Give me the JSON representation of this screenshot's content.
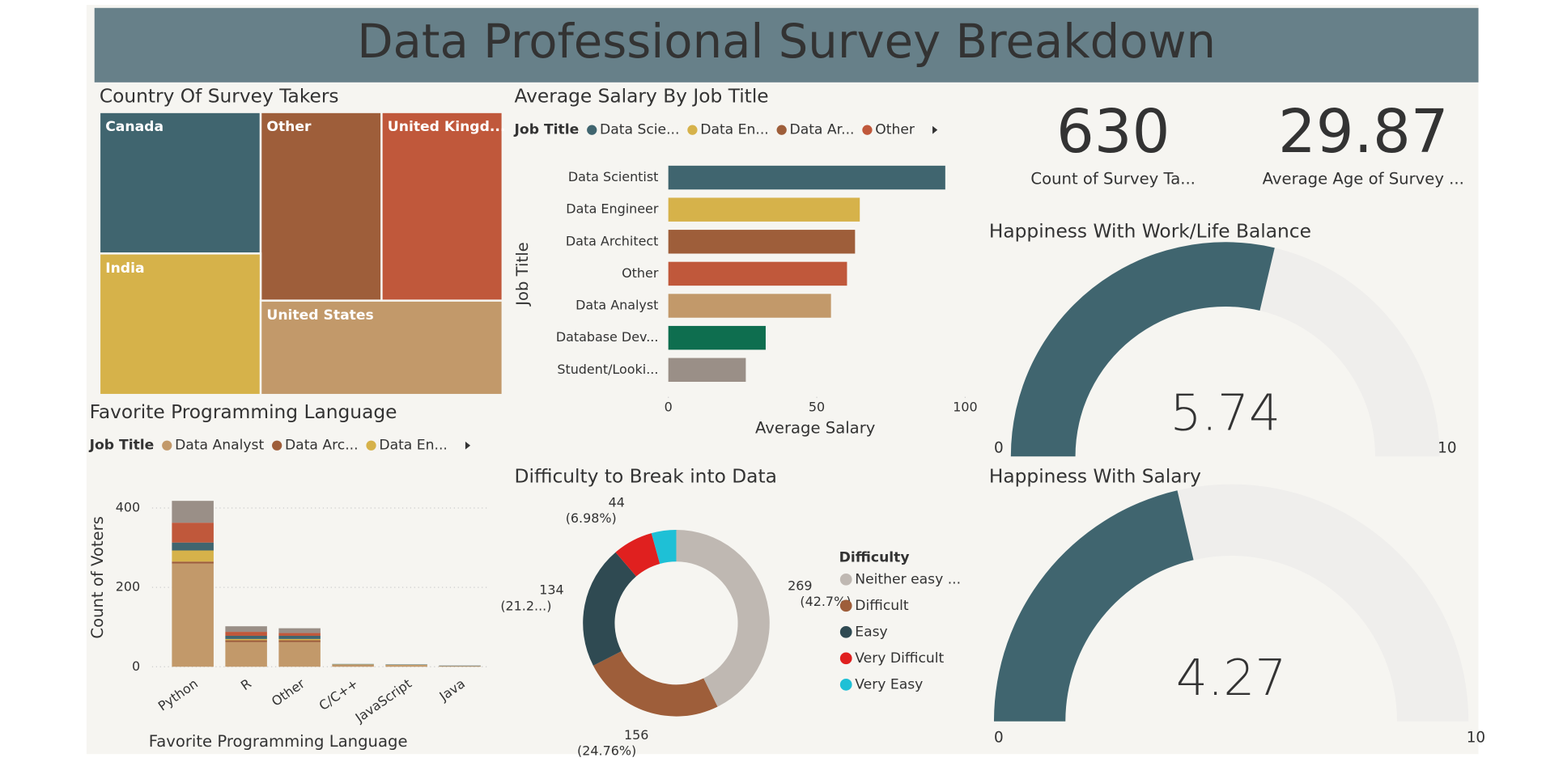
{
  "title": "Data Professional Survey Breakdown",
  "chart_data": [
    {
      "type": "treemap",
      "title": "Country Of Survey Takers",
      "categories": [
        "Canada",
        "Other",
        "United Kingd...",
        "India",
        "United States"
      ],
      "values": [
        126,
        126,
        126,
        126,
        126
      ],
      "colors": [
        "#40656f",
        "#9e5e3a",
        "#c0583b",
        "#d6b24a",
        "#c2996a"
      ]
    },
    {
      "type": "hbar",
      "title": "Average Salary By Job Title",
      "legend": {
        "title": "Job Title",
        "items": [
          {
            "name": "Data Scie...",
            "color": "#40656f"
          },
          {
            "name": "Data En...",
            "color": "#d6b24a"
          },
          {
            "name": "Data Ar...",
            "color": "#9e5e3a"
          },
          {
            "name": "Other",
            "color": "#c0583b"
          }
        ]
      },
      "categories": [
        "Data Scientist",
        "Data Engineer",
        "Data Architect",
        "Other",
        "Data Analyst",
        "Database Dev...",
        "Student/Looki..."
      ],
      "values": [
        93.3,
        64.5,
        62.9,
        60.2,
        54.8,
        32.8,
        26.1
      ],
      "colors": [
        "#40656f",
        "#d6b24a",
        "#9e5e3a",
        "#c0583b",
        "#c2996a",
        "#0e6e4f",
        "#9a8f87"
      ],
      "xlim": [
        0,
        100
      ],
      "xticks": [
        0,
        50,
        100
      ],
      "x_label": "Average Salary",
      "y_label": "Job Title"
    },
    {
      "type": "card",
      "value": 630,
      "label": "Count of Survey Ta..."
    },
    {
      "type": "card",
      "value": 29.87,
      "label": "Average Age of Survey ..."
    },
    {
      "type": "gauge",
      "title": "Happiness With Work/Life Balance",
      "value": 5.74,
      "ylim": [
        0,
        10
      ],
      "yticks": [
        0,
        10
      ],
      "color": "#40656f",
      "track_color": "#efeeec"
    },
    {
      "type": "gauge",
      "title": "Happiness With Salary",
      "value": 4.27,
      "ylim": [
        0,
        10
      ],
      "yticks": [
        0,
        10
      ],
      "color": "#40656f",
      "track_color": "#efeeec"
    },
    {
      "type": "stacked_bar",
      "title": "Favorite Programming Language",
      "legend_title": "Job Title",
      "categories": [
        "Python",
        "R",
        "Other",
        "C/C++",
        "JavaScript",
        "Java"
      ],
      "series": [
        {
          "name": "Data Analyst",
          "color": "#c2996a",
          "values": [
            260,
            62,
            62,
            4,
            3,
            2
          ]
        },
        {
          "name": "Data Arc...",
          "color": "#9e5e3a",
          "values": [
            5,
            5,
            5,
            1,
            1,
            0
          ]
        },
        {
          "name": "Data En...",
          "color": "#d6b24a",
          "values": [
            28,
            3,
            3,
            1,
            1,
            0
          ]
        },
        {
          "name": null,
          "color": "#40656f",
          "values": [
            20,
            8,
            8,
            1,
            1,
            1
          ]
        },
        {
          "name": null,
          "color": "#c0583b",
          "values": [
            50,
            10,
            7,
            0,
            0,
            0
          ]
        },
        {
          "name": null,
          "color": "#9a8f87",
          "values": [
            55,
            14,
            12,
            0,
            0,
            0
          ]
        }
      ],
      "ylim": [
        0,
        420
      ],
      "yticks": [
        0,
        200,
        400
      ],
      "grid": true,
      "x_label": "Favorite Programming Language",
      "y_label": "Count of Voters"
    },
    {
      "type": "donut",
      "title": "Difficulty to Break into Data",
      "legend_title": "Difficulty",
      "categories": [
        "Neither easy ...",
        "Difficult",
        "Easy",
        "Very Difficult",
        "Very Easy"
      ],
      "values": [
        269,
        156,
        134,
        44,
        27
      ],
      "percent_labels": [
        "(42.7%)",
        "(24.76%)",
        "(21.2...)",
        "(6.98%)",
        null
      ],
      "colors": [
        "#bfb8b2",
        "#9e5e3a",
        "#2f4a52",
        "#e0201f",
        "#1ec0d6"
      ]
    }
  ]
}
